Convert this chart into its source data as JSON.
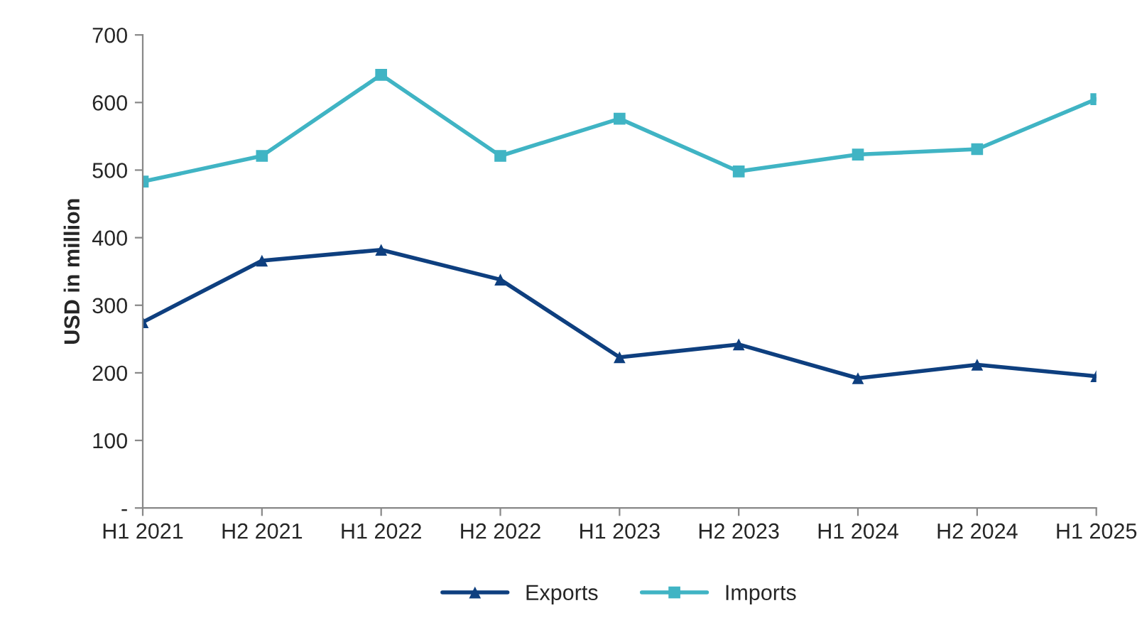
{
  "chart_data": {
    "type": "line",
    "ylabel": "USD in million",
    "categories": [
      "H1 2021",
      "H2 2021",
      "H1 2022",
      "H2 2022",
      "H1 2023",
      "H2 2023",
      "H1 2024",
      "H2 2024",
      "H1 2025"
    ],
    "series": [
      {
        "name": "Exports",
        "color": "#0e3f7f",
        "marker": "triangle",
        "values": [
          275,
          366,
          382,
          338,
          223,
          242,
          192,
          212,
          195
        ]
      },
      {
        "name": "Imports",
        "color": "#40b4c4",
        "marker": "square",
        "values": [
          483,
          521,
          641,
          521,
          576,
          498,
          523,
          531,
          605
        ]
      }
    ],
    "ylim": [
      0,
      700
    ],
    "yticks": [
      {
        "value": 0,
        "label": "-"
      },
      100,
      200,
      300,
      400,
      500,
      600,
      700
    ],
    "grid": false,
    "legend": "bottom",
    "line_style": "solid"
  }
}
